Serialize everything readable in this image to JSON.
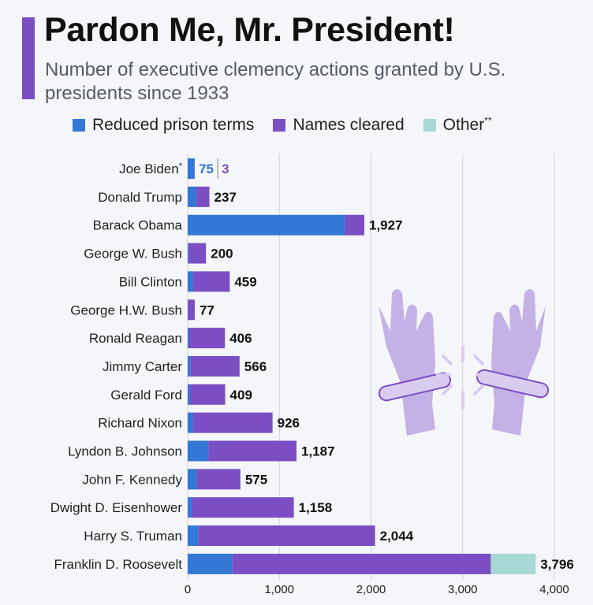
{
  "header": {
    "title": "Pardon Me, Mr. President!",
    "subtitle": "Number of executive clemency actions granted by U.S. presidents since 1933"
  },
  "legend": [
    {
      "label": "Reduced prison terms",
      "color": "#3378d4"
    },
    {
      "label": "Names cleared",
      "color": "#7b4fc3"
    },
    {
      "label": "Other**",
      "color": "#a6d9d6"
    }
  ],
  "colors": {
    "accent": "#7b4fc3",
    "reduced": "#3378d4",
    "cleared": "#7b4fc3",
    "other": "#a6d9d6",
    "illustration": "#c4b1e6"
  },
  "illustration": {
    "icon": "broken-handcuffs-hands-icon"
  },
  "chart_data": {
    "type": "bar",
    "orientation": "horizontal",
    "stacked": true,
    "categories": [
      "Joe Biden*",
      "Donald Trump",
      "Barack Obama",
      "George W. Bush",
      "Bill Clinton",
      "George H.W. Bush",
      "Ronald Reagan",
      "Jimmy Carter",
      "Gerald Ford",
      "Richard Nixon",
      "Lyndon B. Johnson",
      "John F. Kennedy",
      "Dwight D. Eisenhower",
      "Harry S. Truman",
      "Franklin D. Roosevelt"
    ],
    "series": [
      {
        "name": "Reduced prison terms",
        "values": [
          75,
          94,
          1715,
          11,
          61,
          3,
          13,
          29,
          22,
          60,
          227,
          100,
          47,
          118,
          488
        ]
      },
      {
        "name": "Names cleared",
        "values": [
          3,
          143,
          212,
          189,
          398,
          74,
          393,
          537,
          387,
          866,
          960,
          475,
          1111,
          1926,
          2819
        ]
      },
      {
        "name": "Other**",
        "values": [
          0,
          0,
          0,
          0,
          0,
          0,
          0,
          0,
          0,
          0,
          0,
          0,
          0,
          0,
          489
        ]
      }
    ],
    "totals": [
      "75 3",
      "237",
      "1,927",
      "200",
      "459",
      "77",
      "406",
      "566",
      "409",
      "926",
      "1,187",
      "575",
      "1,158",
      "2,044",
      "3,796"
    ],
    "split_label": {
      "reduced": "75",
      "cleared": "3"
    },
    "xlim": [
      0,
      4000
    ],
    "x_ticks": [
      0,
      1000,
      2000,
      3000,
      4000
    ],
    "x_tick_labels": [
      "0",
      "1,000",
      "2,000",
      "3,000",
      "4,000"
    ],
    "grid": true
  }
}
